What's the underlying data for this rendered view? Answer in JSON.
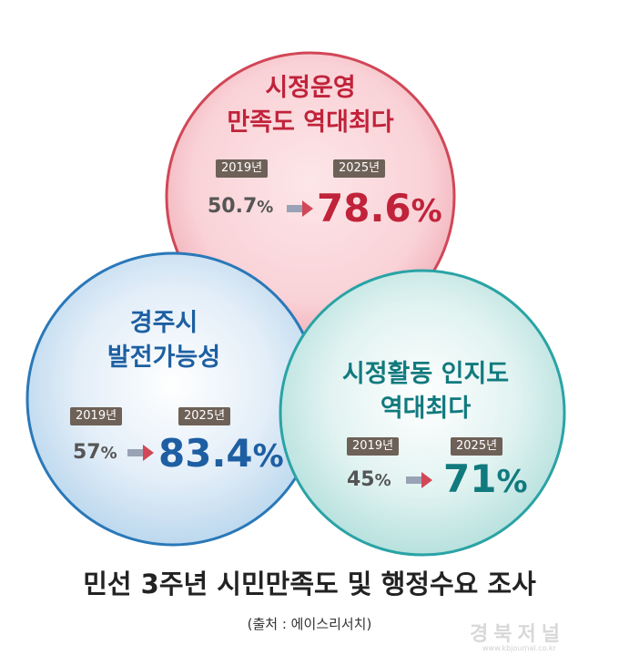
{
  "circles": {
    "top": {
      "title_line1": "시정운영",
      "title_line2": "만족도 역대최다",
      "year_old": "2019년",
      "year_new": "2025년",
      "value_old": "50.7",
      "value_new": "78.6",
      "unit": "%",
      "color": "#d14757"
    },
    "left": {
      "title_line1": "경주시",
      "title_line2": "발전가능성",
      "year_old": "2019년",
      "year_new": "2025년",
      "value_old": "57",
      "value_new": "83.4",
      "unit": "%",
      "color": "#2a78b8"
    },
    "right": {
      "title_line1": "시정활동 인지도",
      "title_line2": "역대최다",
      "year_old": "2019년",
      "year_new": "2025년",
      "value_old": "45",
      "value_new": "71",
      "unit": "%",
      "color": "#2aa3a5"
    }
  },
  "footer": {
    "title": "민선 3주년 시민만족도 및 행정수요 조사",
    "source": "(출처 : 에이스리서치)"
  },
  "watermark": {
    "text": "경북저널",
    "url": "www.kbjournal.co.kr"
  }
}
